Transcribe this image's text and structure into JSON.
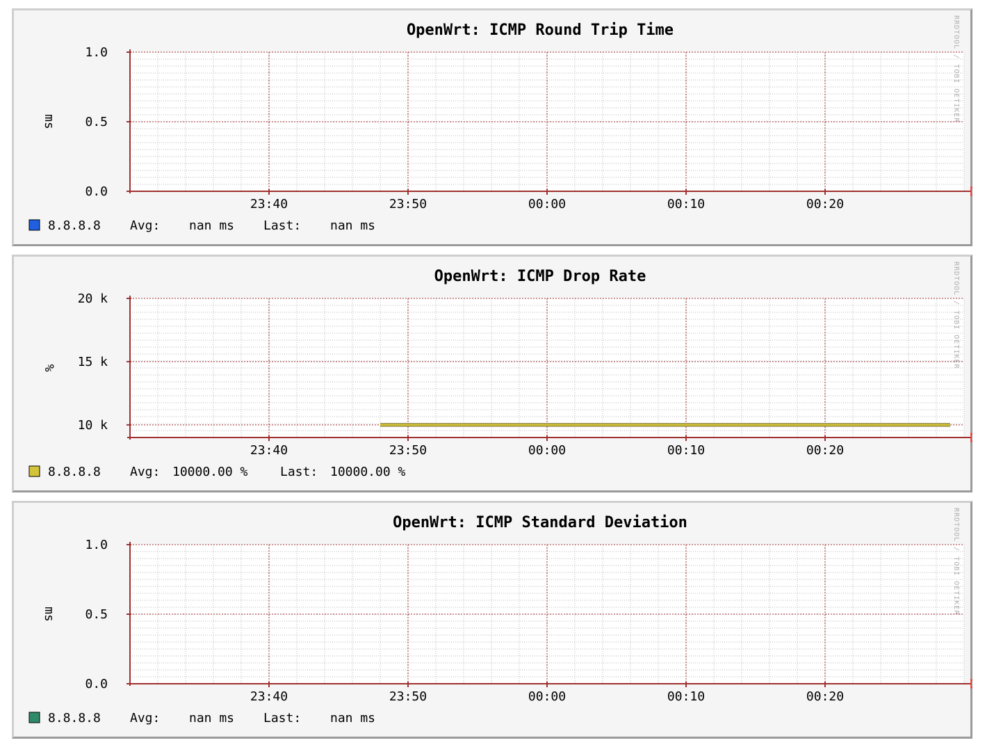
{
  "watermark": "RRDTOOL / TOBI OETIKER",
  "chart_data": [
    {
      "type": "line",
      "title": "OpenWrt: ICMP Round Trip Time",
      "ylabel": "ms",
      "ylim": [
        0.0,
        1.0
      ],
      "yticks": [
        "0.0",
        "0.5",
        "1.0"
      ],
      "ytick_values": [
        0.0,
        0.5,
        1.0
      ],
      "xticks": [
        "23:40",
        "23:50",
        "00:00",
        "00:10",
        "00:20"
      ],
      "series": [
        {
          "name": "8.8.8.8",
          "color": "#1f5fe0",
          "x": [],
          "y": []
        }
      ],
      "legend": {
        "avg_label": "Avg:",
        "avg_value": "nan ms",
        "last_label": "Last:",
        "last_value": "nan ms"
      }
    },
    {
      "type": "line",
      "title": "OpenWrt: ICMP Drop Rate",
      "ylabel": "%",
      "ylim": [
        9000,
        20000
      ],
      "yticks": [
        "10 k",
        "15 k",
        "20 k"
      ],
      "ytick_values": [
        10000,
        15000,
        20000
      ],
      "xticks": [
        "23:40",
        "23:50",
        "00:00",
        "00:10",
        "00:20"
      ],
      "series": [
        {
          "name": "8.8.8.8",
          "color": "#d4c43a",
          "x": [
            "23:48",
            "23:59",
            "00:29"
          ],
          "y": [
            10000,
            10000,
            10000
          ]
        }
      ],
      "legend": {
        "avg_label": "Avg:",
        "avg_value": "10000.00 %",
        "last_label": "Last:",
        "last_value": "10000.00 %"
      }
    },
    {
      "type": "line",
      "title": "OpenWrt: ICMP Standard Deviation",
      "ylabel": "ms",
      "ylim": [
        0.0,
        1.0
      ],
      "yticks": [
        "0.0",
        "0.5",
        "1.0"
      ],
      "ytick_values": [
        0.0,
        0.5,
        1.0
      ],
      "xticks": [
        "23:40",
        "23:50",
        "00:00",
        "00:10",
        "00:20"
      ],
      "series": [
        {
          "name": "8.8.8.8",
          "color": "#2e8b6a",
          "x": [],
          "y": []
        }
      ],
      "legend": {
        "avg_label": "Avg:",
        "avg_value": "nan ms",
        "last_label": "Last:",
        "last_value": "nan ms"
      }
    }
  ]
}
